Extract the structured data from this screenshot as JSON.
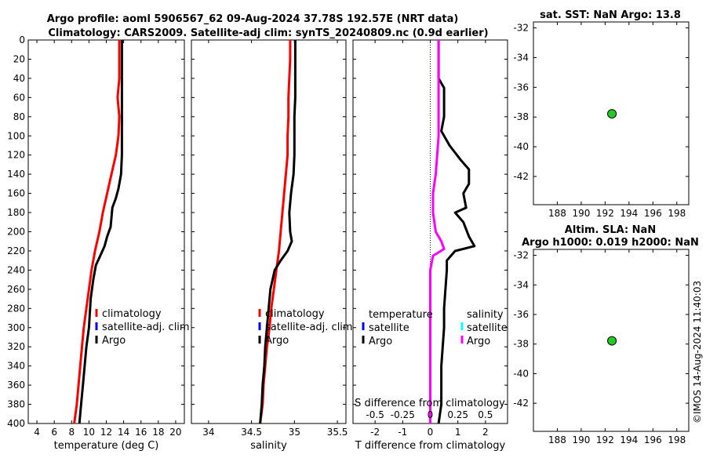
{
  "header": {
    "title_line1": "Argo profile: aoml 5906567_62 09-Aug-2024 37.78S 192.57E (NRT data)",
    "title_line2": "Climatology: CARS2009. Satellite-adj clim: synTS_20240809.nc (0.9d earlier)"
  },
  "side_stamp": "©IMOS 14-Aug-2024 11:40:03",
  "colors": {
    "climatology": "#ff0000",
    "satellite_adj": "#0000ff",
    "argo": "#000000",
    "salinity_diff": "#ff00ff",
    "salinity_satellite": "#00ffff",
    "marker": "#22cc22"
  },
  "chart_data": [
    {
      "id": "temperature-profile",
      "type": "line",
      "xlabel": "temperature (deg C)",
      "ylabel": "",
      "xlim": [
        3,
        21
      ],
      "ylim": [
        400,
        0
      ],
      "xticks": [
        4,
        6,
        8,
        10,
        12,
        14,
        16,
        18,
        20
      ],
      "yticks": [
        0,
        20,
        40,
        60,
        80,
        100,
        120,
        140,
        160,
        180,
        200,
        220,
        240,
        260,
        280,
        300,
        320,
        340,
        360,
        380,
        400
      ],
      "legend": {
        "position": "center-right",
        "entries": [
          "climatology",
          "satellite-adj. clim",
          "Argo"
        ]
      },
      "series": [
        {
          "name": "climatology",
          "color": "#ff0000",
          "points": [
            [
              13.5,
              0
            ],
            [
              13.5,
              20
            ],
            [
              13.5,
              40
            ],
            [
              13.3,
              60
            ],
            [
              13.5,
              80
            ],
            [
              13.4,
              100
            ],
            [
              13.1,
              120
            ],
            [
              12.6,
              140
            ],
            [
              12.1,
              160
            ],
            [
              11.6,
              180
            ],
            [
              11.2,
              200
            ],
            [
              10.7,
              220
            ],
            [
              10.3,
              240
            ],
            [
              10.0,
              260
            ],
            [
              9.7,
              280
            ],
            [
              9.4,
              300
            ],
            [
              9.2,
              320
            ],
            [
              9.0,
              340
            ],
            [
              8.8,
              360
            ],
            [
              8.6,
              380
            ],
            [
              8.3,
              400
            ]
          ]
        },
        {
          "name": "Argo",
          "color": "#000000",
          "points": [
            [
              13.8,
              0
            ],
            [
              13.8,
              20
            ],
            [
              13.8,
              40
            ],
            [
              13.8,
              60
            ],
            [
              13.8,
              80
            ],
            [
              13.8,
              100
            ],
            [
              13.8,
              120
            ],
            [
              13.7,
              140
            ],
            [
              13.4,
              155
            ],
            [
              13.1,
              165
            ],
            [
              12.7,
              175
            ],
            [
              12.6,
              185
            ],
            [
              12.5,
              195
            ],
            [
              12.1,
              205
            ],
            [
              11.8,
              215
            ],
            [
              11.3,
              225
            ],
            [
              10.8,
              235
            ],
            [
              10.5,
              250
            ],
            [
              10.2,
              270
            ],
            [
              10.0,
              300
            ],
            [
              9.7,
              320
            ],
            [
              9.5,
              340
            ],
            [
              9.3,
              360
            ],
            [
              9.1,
              380
            ],
            [
              8.9,
              400
            ]
          ]
        }
      ]
    },
    {
      "id": "salinity-profile",
      "type": "line",
      "xlabel": "salinity",
      "ylabel": "",
      "xlim": [
        33.8,
        35.6
      ],
      "ylim": [
        400,
        0
      ],
      "xticks": [
        34,
        34.5,
        35,
        35.5
      ],
      "legend": {
        "position": "center-right",
        "entries": [
          "climatology",
          "satellite-adj. clim",
          "Argo"
        ]
      },
      "series": [
        {
          "name": "climatology",
          "color": "#ff0000",
          "points": [
            [
              34.95,
              0
            ],
            [
              34.95,
              20
            ],
            [
              34.94,
              40
            ],
            [
              34.93,
              60
            ],
            [
              34.93,
              80
            ],
            [
              34.92,
              100
            ],
            [
              34.92,
              120
            ],
            [
              34.9,
              140
            ],
            [
              34.88,
              160
            ],
            [
              34.86,
              180
            ],
            [
              34.84,
              200
            ],
            [
              34.82,
              220
            ],
            [
              34.79,
              240
            ],
            [
              34.76,
              260
            ],
            [
              34.73,
              280
            ],
            [
              34.71,
              300
            ],
            [
              34.68,
              320
            ],
            [
              34.66,
              340
            ],
            [
              34.64,
              360
            ],
            [
              34.63,
              380
            ],
            [
              34.6,
              400
            ]
          ]
        },
        {
          "name": "Argo",
          "color": "#000000",
          "points": [
            [
              35.01,
              0
            ],
            [
              35.01,
              20
            ],
            [
              35.01,
              40
            ],
            [
              35.01,
              60
            ],
            [
              35.0,
              80
            ],
            [
              35.0,
              100
            ],
            [
              35.0,
              120
            ],
            [
              34.99,
              140
            ],
            [
              34.96,
              160
            ],
            [
              34.94,
              180
            ],
            [
              34.95,
              200
            ],
            [
              34.97,
              210
            ],
            [
              34.92,
              220
            ],
            [
              34.84,
              230
            ],
            [
              34.77,
              240
            ],
            [
              34.72,
              260
            ],
            [
              34.7,
              280
            ],
            [
              34.68,
              300
            ],
            [
              34.66,
              320
            ],
            [
              34.65,
              340
            ],
            [
              34.63,
              360
            ],
            [
              34.62,
              380
            ],
            [
              34.6,
              400
            ]
          ]
        }
      ]
    },
    {
      "id": "difference-profile",
      "type": "line",
      "xlabel": "T difference from climatology",
      "x2label": "S difference from climatology",
      "ylabel": "",
      "xlim": [
        -2.8,
        2.8
      ],
      "ylim": [
        400,
        0
      ],
      "xticks": [
        -2,
        -1,
        0,
        1,
        2
      ],
      "x2ticks": [
        "-0.5",
        "-0.25",
        "0",
        "0.25",
        "0.5"
      ],
      "legend": {
        "position": "center",
        "entries": [
          "temperature",
          "satellite",
          "Argo",
          "salinity",
          "satellite",
          "Argo"
        ]
      },
      "series": [
        {
          "name": "Argo",
          "color": "#000000",
          "points": [
            [
              0.3,
              0
            ],
            [
              0.3,
              20
            ],
            [
              0.3,
              40
            ],
            [
              0.5,
              50
            ],
            [
              0.5,
              60
            ],
            [
              0.5,
              80
            ],
            [
              0.4,
              95
            ],
            [
              0.7,
              110
            ],
            [
              1.1,
              125
            ],
            [
              1.4,
              135
            ],
            [
              1.4,
              150
            ],
            [
              1.2,
              160
            ],
            [
              1.3,
              175
            ],
            [
              0.9,
              180
            ],
            [
              1.2,
              190
            ],
            [
              1.4,
              205
            ],
            [
              1.6,
              215
            ],
            [
              0.9,
              220
            ],
            [
              0.6,
              230
            ],
            [
              0.6,
              240
            ],
            [
              0.5,
              280
            ],
            [
              0.5,
              300
            ],
            [
              0.4,
              340
            ],
            [
              0.4,
              380
            ],
            [
              0.3,
              400
            ]
          ]
        },
        {
          "name": "Argo",
          "color": "#ff00ff",
          "points": [
            [
              0.3,
              0
            ],
            [
              0.3,
              20
            ],
            [
              0.3,
              60
            ],
            [
              0.3,
              100
            ],
            [
              0.2,
              140
            ],
            [
              0.1,
              160
            ],
            [
              0.1,
              180
            ],
            [
              0.2,
              200
            ],
            [
              0.4,
              210
            ],
            [
              0.5,
              218
            ],
            [
              0.1,
              225
            ],
            [
              0.0,
              240
            ],
            [
              0.0,
              280
            ],
            [
              0.0,
              320
            ],
            [
              0.0,
              360
            ],
            [
              0.0,
              400
            ]
          ]
        }
      ]
    },
    {
      "id": "sst-map",
      "type": "scatter",
      "title": "sat. SST: NaN Argo: 13.8",
      "xlim": [
        186,
        199
      ],
      "ylim": [
        -43.9,
        -31.6
      ],
      "xticks": [
        188,
        190,
        192,
        194,
        196,
        198
      ],
      "yticks": [
        -32,
        -34,
        -36,
        -38,
        -40,
        -42
      ],
      "points": [
        [
          192.57,
          -37.78
        ]
      ]
    },
    {
      "id": "sla-map",
      "type": "scatter",
      "title": "Altim. SLA: NaN",
      "title2": "Argo h1000: 0.019 h2000: NaN",
      "xlim": [
        186,
        199
      ],
      "ylim": [
        -43.9,
        -31.6
      ],
      "xticks": [
        188,
        190,
        192,
        194,
        196,
        198
      ],
      "yticks": [
        -32,
        -34,
        -36,
        -38,
        -40,
        -42
      ],
      "points": [
        [
          192.57,
          -37.78
        ]
      ]
    }
  ]
}
